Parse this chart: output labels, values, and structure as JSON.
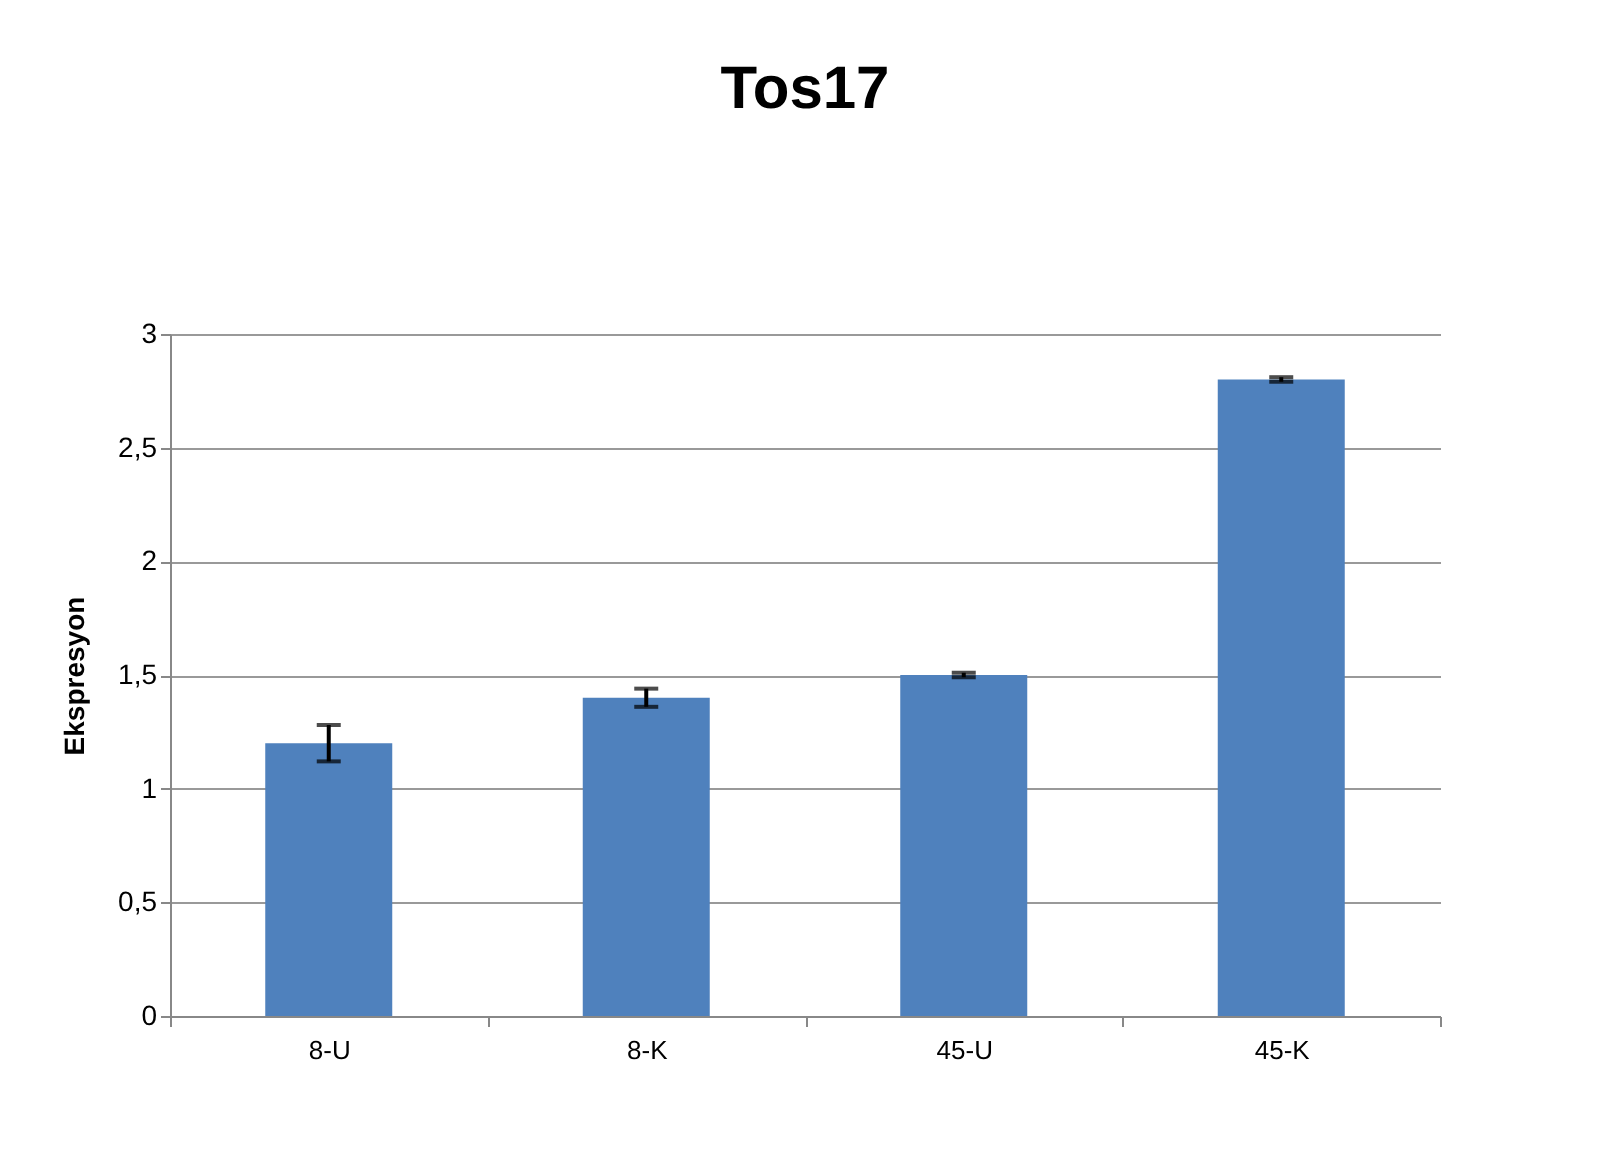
{
  "chart_data": {
    "type": "bar",
    "title": "Tos17",
    "ylabel": "Ekspresyon",
    "categories": [
      "8-U",
      "8-K",
      "45-U",
      "45-K"
    ],
    "values": [
      1.2,
      1.4,
      1.5,
      2.8
    ],
    "errors": [
      0.08,
      0.04,
      0.01,
      0.01
    ],
    "color": "#4f81bd",
    "ylim": [
      0,
      3
    ],
    "yticks": [
      0,
      {
        "value": 0.5,
        "label": "0,5"
      },
      1,
      {
        "value": 1.5,
        "label": "1,5"
      },
      2,
      {
        "value": 2.5,
        "label": "2,5"
      },
      3
    ],
    "grid": "y"
  }
}
